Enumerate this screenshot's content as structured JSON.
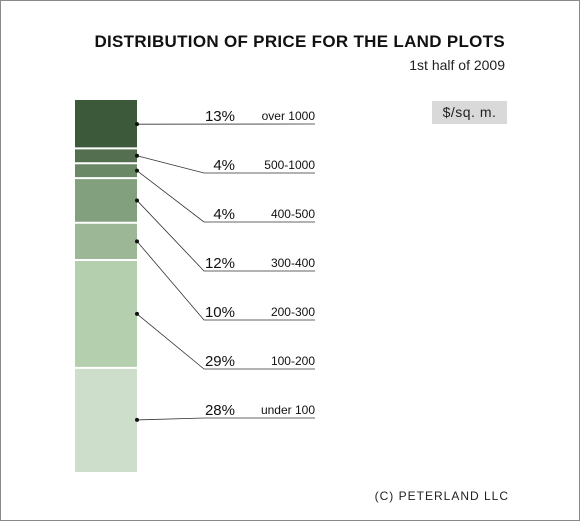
{
  "chart_data": {
    "type": "bar",
    "title": "DISTRIBUTION OF PRICE FOR THE LAND PLOTS",
    "subtitle": "1st half of 2009",
    "unit_label": "$/sq. m.",
    "credit": "(C) PETERLAND LLC",
    "stacked": true,
    "series": [
      {
        "category": "over 1000",
        "value": 13,
        "label": "13%",
        "color": "#3c5a3a"
      },
      {
        "category": "500-1000",
        "value": 4,
        "label": "4%",
        "color": "#546f4f"
      },
      {
        "category": "400-500",
        "value": 4,
        "label": "4%",
        "color": "#6b8866"
      },
      {
        "category": "300-400",
        "value": 12,
        "label": "12%",
        "color": "#82a07d"
      },
      {
        "category": "200-300",
        "value": 10,
        "label": "10%",
        "color": "#9cb796"
      },
      {
        "category": "100-200",
        "value": 29,
        "label": "29%",
        "color": "#b4cfae"
      },
      {
        "category": "under 100",
        "value": 28,
        "label": "28%",
        "color": "#cddecb"
      }
    ]
  }
}
